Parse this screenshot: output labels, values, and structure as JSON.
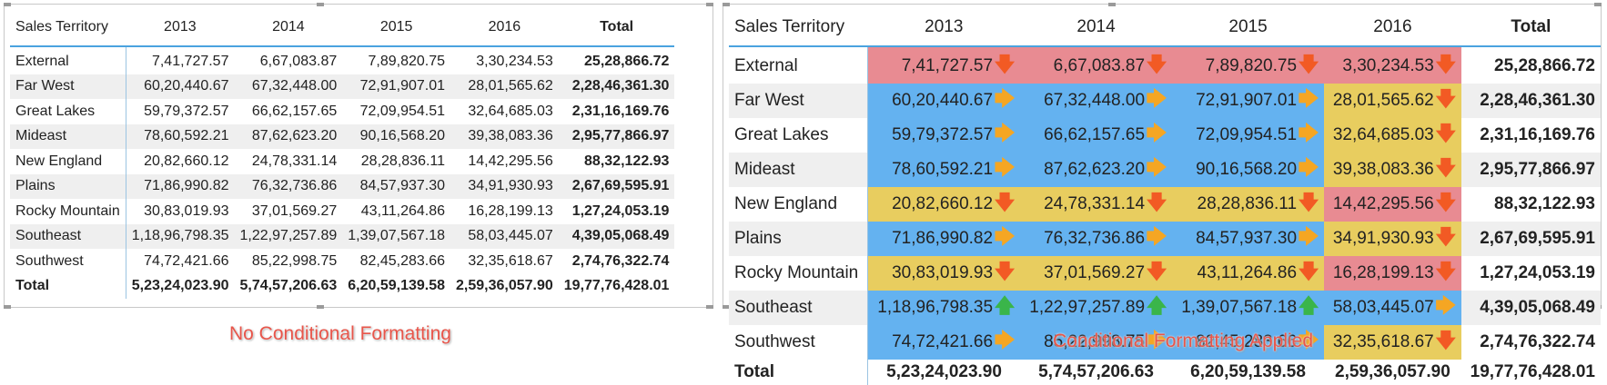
{
  "headers": [
    "Sales Territory",
    "2013",
    "2014",
    "2015",
    "2016",
    "Total"
  ],
  "rows": [
    {
      "name": "External",
      "v": [
        "7,41,727.57",
        "6,67,083.87",
        "7,89,820.75",
        "3,30,234.53"
      ],
      "total": "25,28,866.72",
      "fmt": [
        {
          "c": "red",
          "a": "down"
        },
        {
          "c": "red",
          "a": "down"
        },
        {
          "c": "red",
          "a": "down"
        },
        {
          "c": "red",
          "a": "down"
        }
      ]
    },
    {
      "name": "Far West",
      "v": [
        "60,20,440.67",
        "67,32,448.00",
        "72,91,907.01",
        "28,01,565.62"
      ],
      "total": "2,28,46,361.30",
      "fmt": [
        {
          "c": "blue",
          "a": "right"
        },
        {
          "c": "blue",
          "a": "right"
        },
        {
          "c": "blue",
          "a": "right"
        },
        {
          "c": "yellow",
          "a": "down"
        }
      ]
    },
    {
      "name": "Great Lakes",
      "v": [
        "59,79,372.57",
        "66,62,157.65",
        "72,09,954.51",
        "32,64,685.03"
      ],
      "total": "2,31,16,169.76",
      "fmt": [
        {
          "c": "blue",
          "a": "right"
        },
        {
          "c": "blue",
          "a": "right"
        },
        {
          "c": "blue",
          "a": "right"
        },
        {
          "c": "yellow",
          "a": "down"
        }
      ]
    },
    {
      "name": "Mideast",
      "v": [
        "78,60,592.21",
        "87,62,623.20",
        "90,16,568.20",
        "39,38,083.36"
      ],
      "total": "2,95,77,866.97",
      "fmt": [
        {
          "c": "blue",
          "a": "right"
        },
        {
          "c": "blue",
          "a": "right"
        },
        {
          "c": "blue",
          "a": "right"
        },
        {
          "c": "yellow",
          "a": "down"
        }
      ]
    },
    {
      "name": "New England",
      "v": [
        "20,82,660.12",
        "24,78,331.14",
        "28,28,836.11",
        "14,42,295.56"
      ],
      "total": "88,32,122.93",
      "fmt": [
        {
          "c": "yellow",
          "a": "down"
        },
        {
          "c": "yellow",
          "a": "down"
        },
        {
          "c": "yellow",
          "a": "down"
        },
        {
          "c": "red",
          "a": "down"
        }
      ]
    },
    {
      "name": "Plains",
      "v": [
        "71,86,990.82",
        "76,32,736.86",
        "84,57,937.30",
        "34,91,930.93"
      ],
      "total": "2,67,69,595.91",
      "fmt": [
        {
          "c": "blue",
          "a": "right"
        },
        {
          "c": "blue",
          "a": "right"
        },
        {
          "c": "blue",
          "a": "right"
        },
        {
          "c": "yellow",
          "a": "down"
        }
      ]
    },
    {
      "name": "Rocky Mountain",
      "v": [
        "30,83,019.93",
        "37,01,569.27",
        "43,11,264.86",
        "16,28,199.13"
      ],
      "total": "1,27,24,053.19",
      "fmt": [
        {
          "c": "yellow",
          "a": "down"
        },
        {
          "c": "yellow",
          "a": "down"
        },
        {
          "c": "yellow",
          "a": "down"
        },
        {
          "c": "red",
          "a": "down"
        }
      ]
    },
    {
      "name": "Southeast",
      "v": [
        "1,18,96,798.35",
        "1,22,97,257.89",
        "1,39,07,567.18",
        "58,03,445.07"
      ],
      "total": "4,39,05,068.49",
      "fmt": [
        {
          "c": "blue",
          "a": "up"
        },
        {
          "c": "blue",
          "a": "up"
        },
        {
          "c": "blue",
          "a": "up"
        },
        {
          "c": "blue",
          "a": "right"
        }
      ]
    },
    {
      "name": "Southwest",
      "v": [
        "74,72,421.66",
        "85,22,998.75",
        "82,45,283.66",
        "32,35,618.67"
      ],
      "total": "2,74,76,322.74",
      "fmt": [
        {
          "c": "blue",
          "a": "right"
        },
        {
          "c": "blue",
          "a": "right"
        },
        {
          "c": "blue",
          "a": "right"
        },
        {
          "c": "yellow",
          "a": "down"
        }
      ]
    }
  ],
  "totals": {
    "label": "Total",
    "v": [
      "5,23,24,023.90",
      "5,74,57,206.63",
      "6,20,59,139.58",
      "2,59,36,057.90"
    ],
    "total": "19,77,76,428.01"
  },
  "captions": {
    "left": "No Conditional Formatting",
    "right": "Conditional Formatting Applied"
  },
  "colors": {
    "red": "#e88b92",
    "blue": "#64b2f0",
    "yellow": "#e8cd5f",
    "arrow_down": "#f25a24",
    "arrow_right": "#f5a623",
    "arrow_up": "#3ab54a"
  },
  "arrow_glyphs": {
    "down": "🡇",
    "right": "🡆",
    "up": "🡅"
  }
}
